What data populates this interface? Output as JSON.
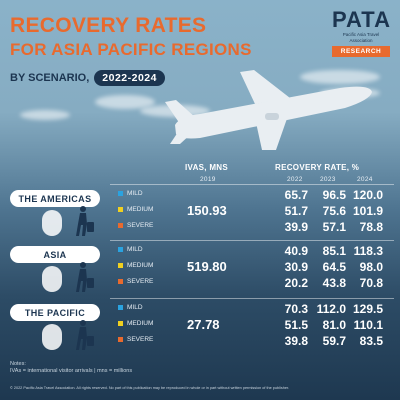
{
  "title": {
    "line1": "RECOVERY RATES",
    "line2": "FOR ASIA PACIFIC REGIONS",
    "line3": "BY SCENARIO,",
    "years": "2022-2024"
  },
  "logo": {
    "mark": "PATA",
    "tagline": "Pacific Asia Travel Association",
    "badge": "RESEARCH"
  },
  "headers": {
    "ivas": "IVAS, MNS",
    "ivas_year": "2019",
    "recovery": "RECOVERY RATE, %"
  },
  "scenario_colors": {
    "MILD": "#2aa3e0",
    "MEDIUM": "#f0d020",
    "SEVERE": "#e86a2e"
  },
  "chart_data": {
    "type": "table",
    "title": "RECOVERY RATES FOR ASIA PACIFIC REGIONS BY SCENARIO, 2022-2024",
    "years": [
      "2022",
      "2023",
      "2024"
    ],
    "scenarios": [
      "MILD",
      "MEDIUM",
      "SEVERE"
    ],
    "regions": [
      {
        "name": "THE AMERICAS",
        "ivas_2019": "150.93",
        "rates": {
          "MILD": [
            "65.7",
            "96.5",
            "120.0"
          ],
          "MEDIUM": [
            "51.7",
            "75.6",
            "101.9"
          ],
          "SEVERE": [
            "39.9",
            "57.1",
            "78.8"
          ]
        }
      },
      {
        "name": "ASIA",
        "ivas_2019": "519.80",
        "rates": {
          "MILD": [
            "40.9",
            "85.1",
            "118.3"
          ],
          "MEDIUM": [
            "30.9",
            "64.5",
            "98.0"
          ],
          "SEVERE": [
            "20.2",
            "43.8",
            "70.8"
          ]
        }
      },
      {
        "name": "THE PACIFIC",
        "ivas_2019": "27.78",
        "rates": {
          "MILD": [
            "70.3",
            "112.0",
            "129.5"
          ],
          "MEDIUM": [
            "51.5",
            "81.0",
            "110.1"
          ],
          "SEVERE": [
            "39.8",
            "59.7",
            "83.5"
          ]
        }
      }
    ]
  },
  "notes": {
    "title": "Notes:",
    "text": "IVAs = international visitor arrivals | mns = millions"
  },
  "copyright": "© 2022 Pacific Asia Travel Association. All rights reserved. No part of this publication may be reproduced in whole or in part without written permission of the publisher."
}
